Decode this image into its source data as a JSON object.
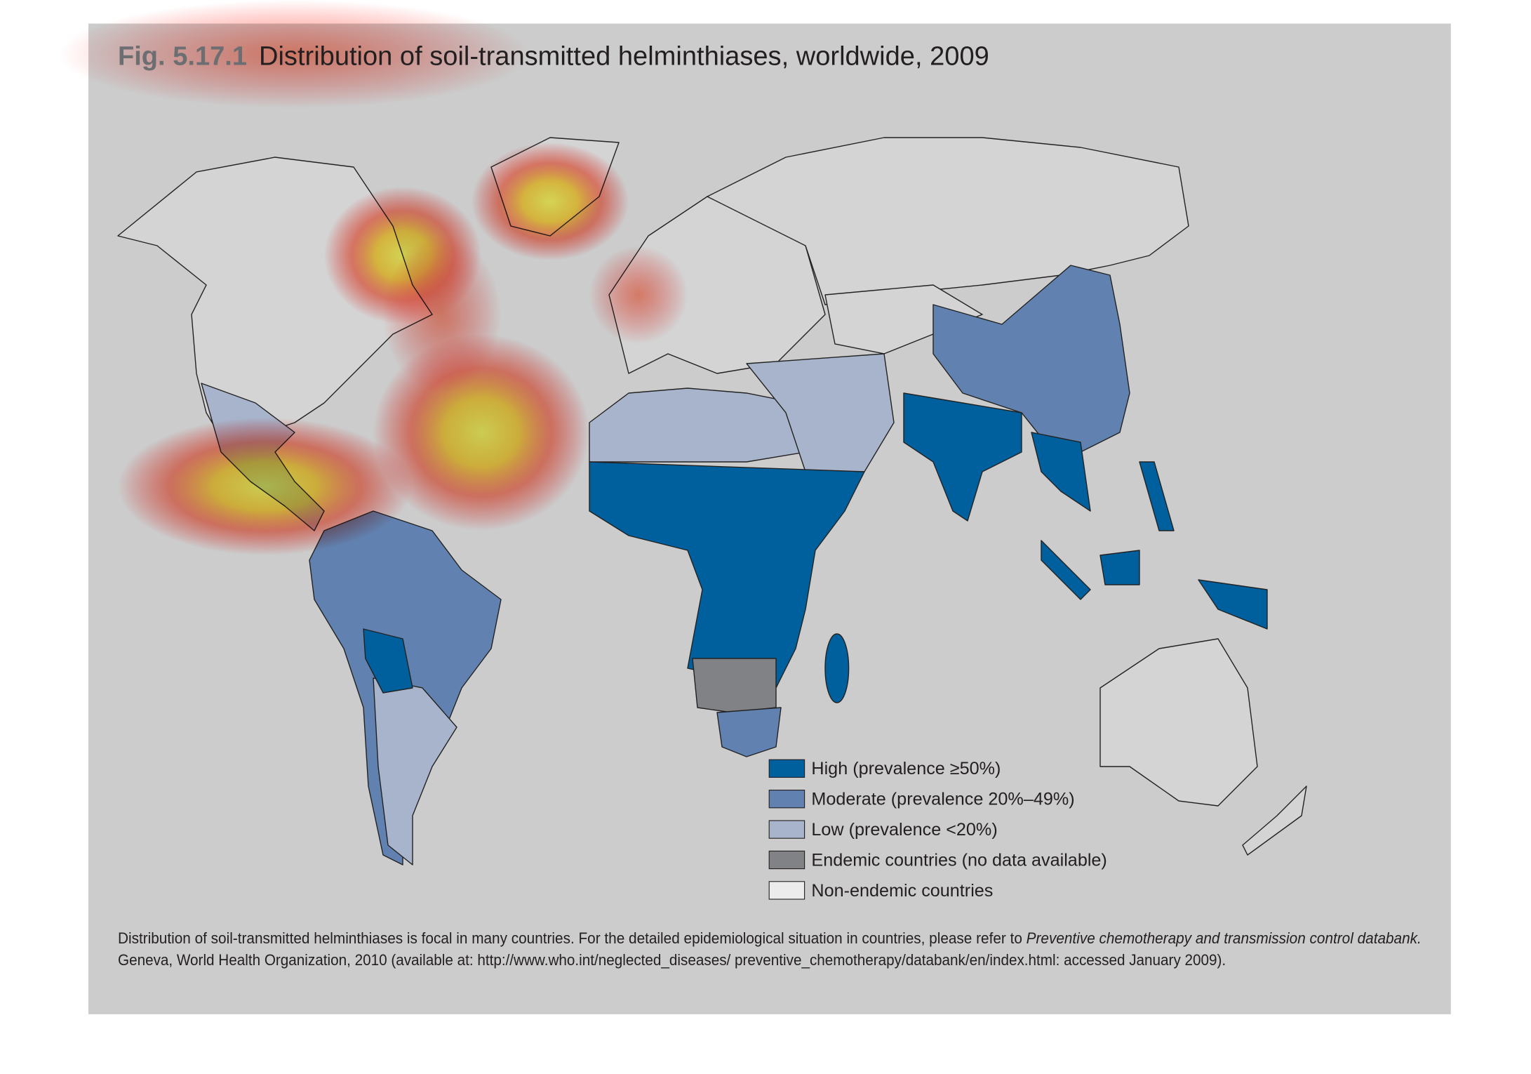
{
  "figure": {
    "number": "Fig. 5.17.1",
    "title": "Distribution of soil-transmitted helminthiases, worldwide, 2009"
  },
  "legend": [
    {
      "label": "High (prevalence ≥50%)",
      "color": "#00609e"
    },
    {
      "label": "Moderate (prevalence 20%–49%)",
      "color": "#6182b0"
    },
    {
      "label": "Low (prevalence <20%)",
      "color": "#a8b4cb"
    },
    {
      "label": "Endemic countries (no data available)",
      "color": "#808285"
    },
    {
      "label": "Non-endemic countries",
      "color": "#ececec"
    }
  ],
  "footnote": {
    "text": "Distribution of soil-transmitted helminthiases is focal in many countries. For the detailed epidemiological situation in countries, please refer to ",
    "italic": "Preventive chemotherapy and transmission control databank.",
    "line2": "Geneva, World Health Organization, 2010 (available at: http://www.who.int/neglected_diseases/ preventive_chemotherapy/databank/en/index.html: accessed January 2009)."
  }
}
